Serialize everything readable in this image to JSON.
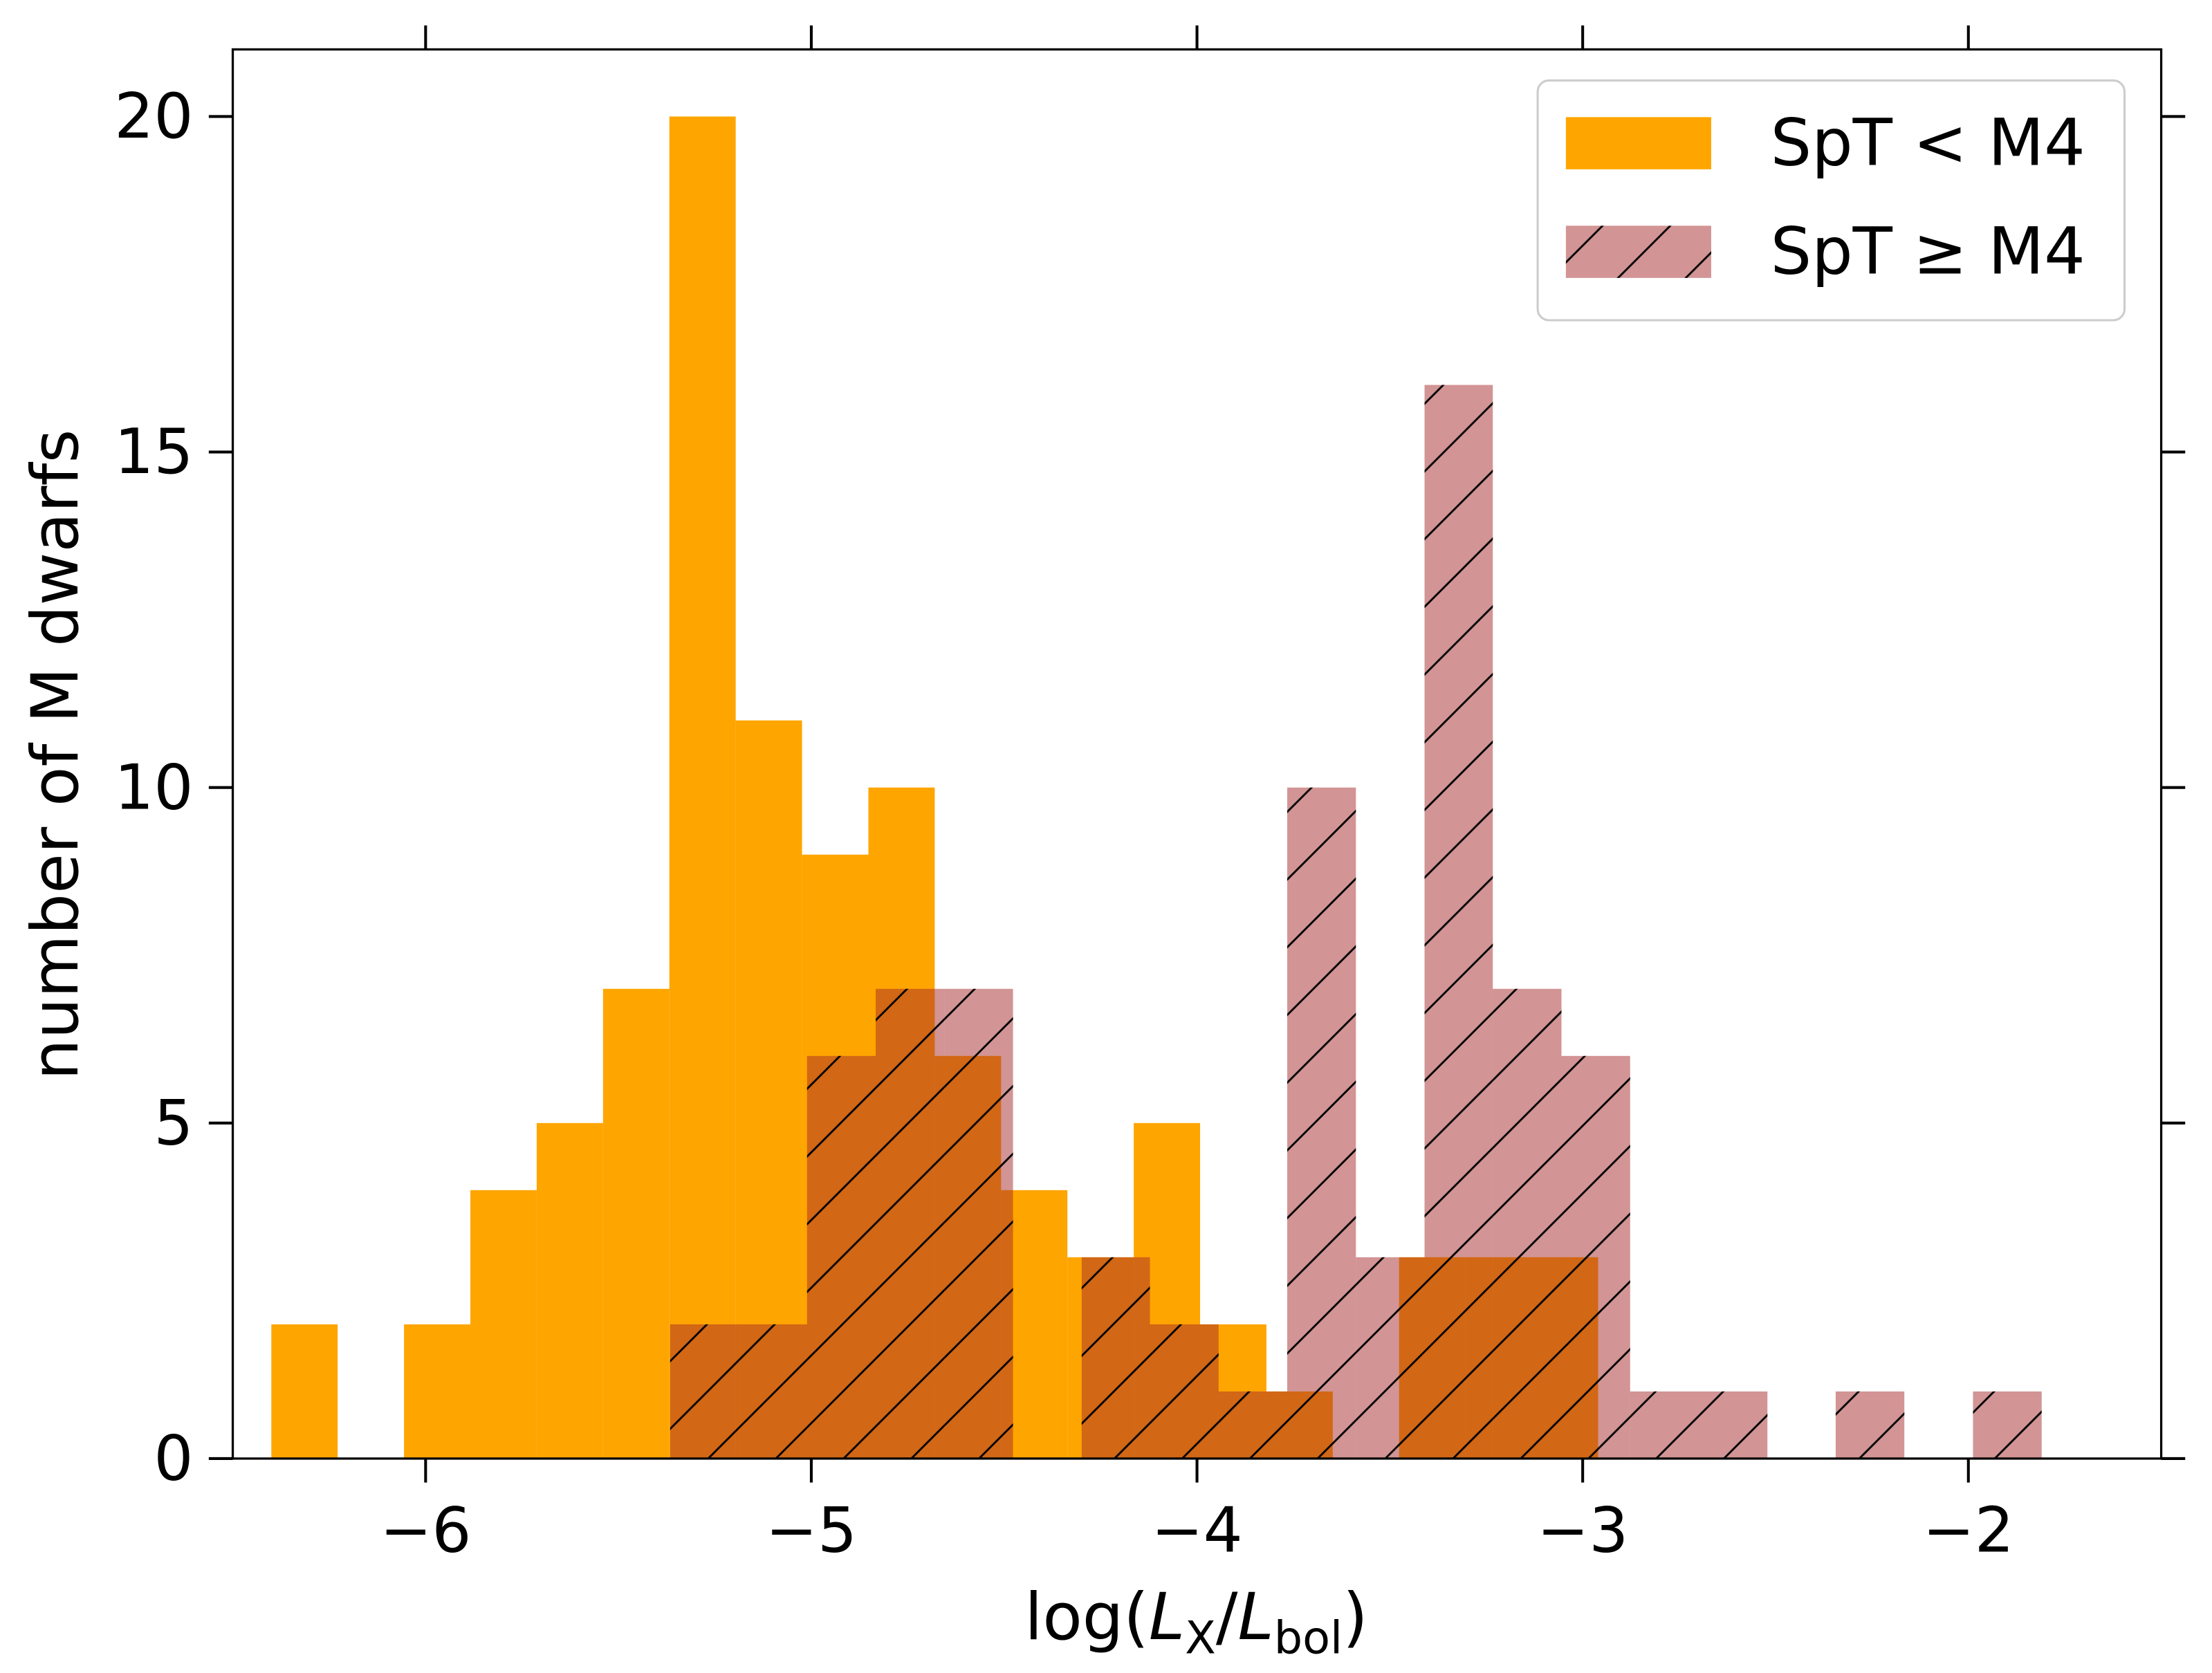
{
  "chart_data": {
    "type": "histogram",
    "xlabel": [
      "log(",
      "L",
      "X",
      "/",
      "L",
      "bol",
      ")"
    ],
    "ylabel": "number of M dwarfs",
    "xlim": [
      -6.5,
      -1.5
    ],
    "ylim": [
      0,
      21
    ],
    "xticks": [
      {
        "value": -6,
        "label": "−6"
      },
      {
        "value": -5,
        "label": "−5"
      },
      {
        "value": -4,
        "label": "−4"
      },
      {
        "value": -3,
        "label": "−3"
      },
      {
        "value": -2,
        "label": "−2"
      }
    ],
    "yticks": [
      0,
      5,
      10,
      15,
      20
    ],
    "legend": "upper right",
    "series": [
      {
        "name": "SpT < M4",
        "color": "#ffa500",
        "bins": [
          -6.4,
          -6.228,
          -6.056,
          -5.884,
          -5.712,
          -5.54,
          -5.368,
          -5.196,
          -5.024,
          -4.852,
          -4.68,
          -4.508,
          -4.336,
          -4.164,
          -3.992,
          -3.82,
          -3.648,
          -3.476,
          -3.304,
          -3.132,
          -2.96
        ],
        "values": [
          2,
          0,
          2,
          4,
          5,
          7,
          20,
          11,
          9,
          10,
          6,
          4,
          3,
          5,
          2,
          1,
          0,
          3,
          3,
          3
        ]
      },
      {
        "name": "SpT ≥ M4",
        "color": "#a52a2a",
        "opacity": 0.5,
        "hatch": "/",
        "bins": [
          -5.366,
          -5.188,
          -5.011,
          -4.833,
          -4.655,
          -4.477,
          -4.299,
          -4.122,
          -3.944,
          -3.766,
          -3.588,
          -3.41,
          -3.233,
          -3.055,
          -2.877,
          -2.699,
          -2.521,
          -2.344,
          -2.166,
          -1.988,
          -1.81
        ],
        "values": [
          2,
          2,
          6,
          7,
          7,
          0,
          3,
          2,
          1,
          10,
          3,
          16,
          7,
          6,
          1,
          1,
          0,
          1,
          0,
          1
        ]
      }
    ]
  }
}
